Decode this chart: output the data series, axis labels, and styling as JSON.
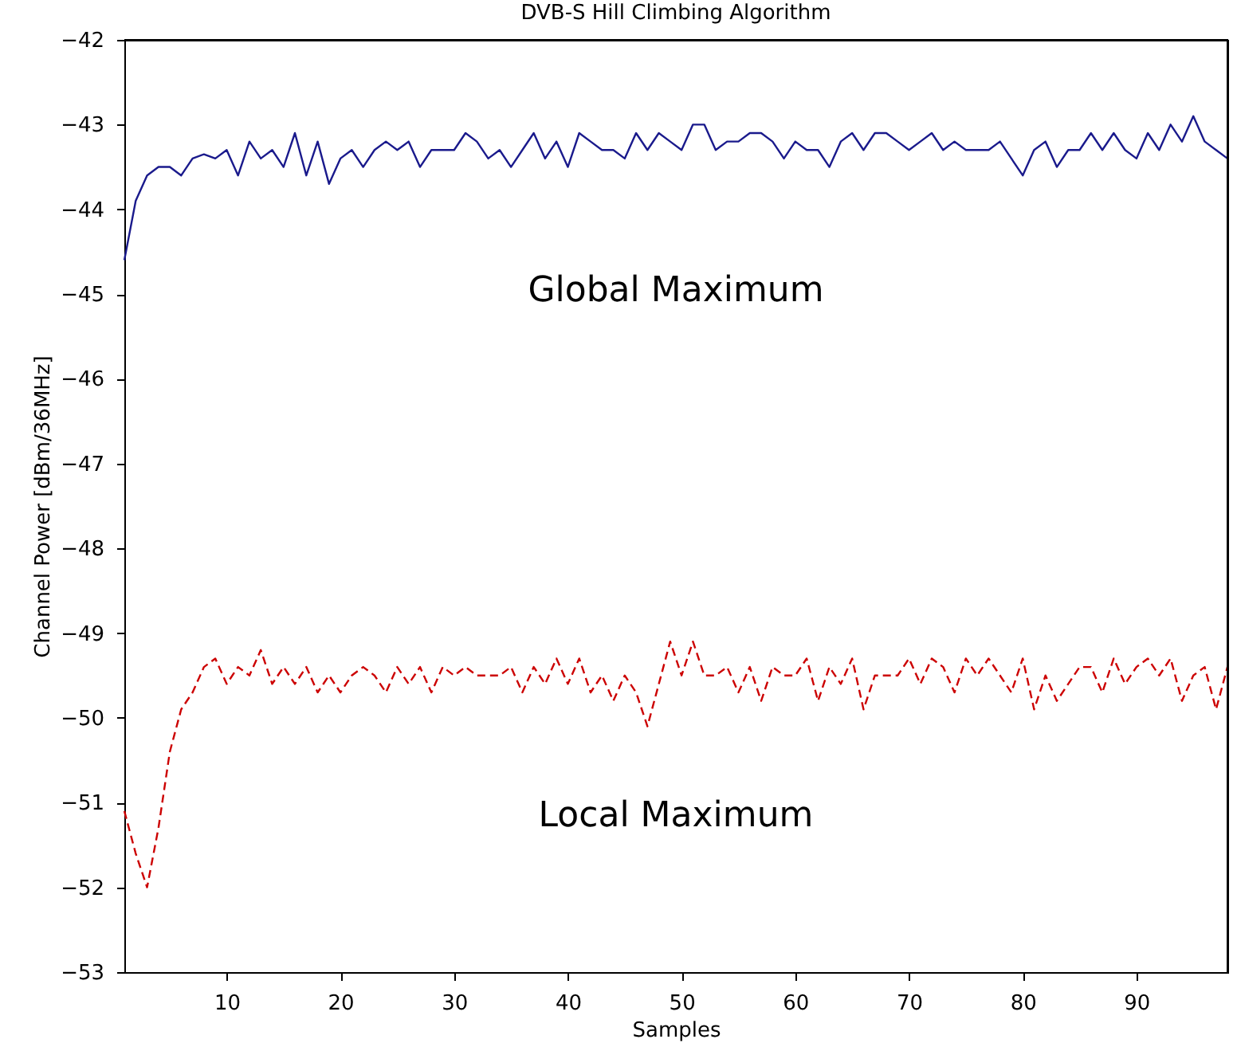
{
  "chart_data": {
    "type": "line",
    "title": "DVB-S Hill Climbing Algorithm",
    "xlabel": "Samples",
    "ylabel": "Channel Power [dBm/36MHz]",
    "xlim": [
      1,
      98
    ],
    "xticks": [
      10,
      20,
      30,
      40,
      50,
      60,
      70,
      80,
      90
    ],
    "ylim": [
      -53,
      -42
    ],
    "yticks": [
      -53,
      -52,
      -51,
      -50,
      -49,
      -48,
      -47,
      -46,
      -45,
      -44,
      -43,
      -42
    ],
    "grid": false,
    "x": [
      1,
      2,
      3,
      4,
      5,
      6,
      7,
      8,
      9,
      10,
      11,
      12,
      13,
      14,
      15,
      16,
      17,
      18,
      19,
      20,
      21,
      22,
      23,
      24,
      25,
      26,
      27,
      28,
      29,
      30,
      31,
      32,
      33,
      34,
      35,
      36,
      37,
      38,
      39,
      40,
      41,
      42,
      43,
      44,
      45,
      46,
      47,
      48,
      49,
      50,
      51,
      52,
      53,
      54,
      55,
      56,
      57,
      58,
      59,
      60,
      61,
      62,
      63,
      64,
      65,
      66,
      67,
      68,
      69,
      70,
      71,
      72,
      73,
      74,
      75,
      76,
      77,
      78,
      79,
      80,
      81,
      82,
      83,
      84,
      85,
      86,
      87,
      88,
      89,
      90,
      91,
      92,
      93,
      94,
      95,
      96,
      97,
      98
    ],
    "series": [
      {
        "name": "Global Maximum",
        "color": "#1a1a8c",
        "line_style": "solid",
        "values": [
          -44.6,
          -43.9,
          -43.6,
          -43.5,
          -43.5,
          -43.6,
          -43.4,
          -43.35,
          -43.4,
          -43.3,
          -43.6,
          -43.2,
          -43.4,
          -43.3,
          -43.5,
          -43.1,
          -43.6,
          -43.2,
          -43.7,
          -43.4,
          -43.3,
          -43.5,
          -43.3,
          -43.2,
          -43.3,
          -43.2,
          -43.5,
          -43.3,
          -43.3,
          -43.3,
          -43.1,
          -43.2,
          -43.4,
          -43.3,
          -43.5,
          -43.3,
          -43.1,
          -43.4,
          -43.2,
          -43.5,
          -43.1,
          -43.2,
          -43.3,
          -43.3,
          -43.4,
          -43.1,
          -43.3,
          -43.1,
          -43.2,
          -43.3,
          -43.0,
          -43.0,
          -43.3,
          -43.2,
          -43.2,
          -43.1,
          -43.1,
          -43.2,
          -43.4,
          -43.2,
          -43.3,
          -43.3,
          -43.5,
          -43.2,
          -43.1,
          -43.3,
          -43.1,
          -43.1,
          -43.2,
          -43.3,
          -43.2,
          -43.1,
          -43.3,
          -43.2,
          -43.3,
          -43.3,
          -43.3,
          -43.2,
          -43.4,
          -43.6,
          -43.3,
          -43.2,
          -43.5,
          -43.3,
          -43.3,
          -43.1,
          -43.3,
          -43.1,
          -43.3,
          -43.4,
          -43.1,
          -43.3,
          -43.0,
          -43.2,
          -42.9,
          -43.2,
          -43.3,
          -43.4
        ]
      },
      {
        "name": "Local Maximum",
        "color": "#cc0000",
        "line_style": "dashed",
        "values": [
          -51.1,
          -51.6,
          -52.0,
          -51.3,
          -50.4,
          -49.9,
          -49.7,
          -49.4,
          -49.3,
          -49.6,
          -49.4,
          -49.5,
          -49.2,
          -49.6,
          -49.4,
          -49.6,
          -49.4,
          -49.7,
          -49.5,
          -49.7,
          -49.5,
          -49.4,
          -49.5,
          -49.7,
          -49.4,
          -49.6,
          -49.4,
          -49.7,
          -49.4,
          -49.5,
          -49.4,
          -49.5,
          -49.5,
          -49.5,
          -49.4,
          -49.7,
          -49.4,
          -49.6,
          -49.3,
          -49.6,
          -49.3,
          -49.7,
          -49.5,
          -49.8,
          -49.5,
          -49.7,
          -50.1,
          -49.6,
          -49.1,
          -49.5,
          -49.1,
          -49.5,
          -49.5,
          -49.4,
          -49.7,
          -49.4,
          -49.8,
          -49.4,
          -49.5,
          -49.5,
          -49.3,
          -49.8,
          -49.4,
          -49.6,
          -49.3,
          -49.9,
          -49.5,
          -49.5,
          -49.5,
          -49.3,
          -49.6,
          -49.3,
          -49.4,
          -49.7,
          -49.3,
          -49.5,
          -49.3,
          -49.5,
          -49.7,
          -49.3,
          -49.9,
          -49.5,
          -49.8,
          -49.6,
          -49.4,
          -49.4,
          -49.7,
          -49.3,
          -49.6,
          -49.4,
          -49.3,
          -49.5,
          -49.3,
          -49.8,
          -49.5,
          -49.4,
          -49.9,
          -49.4
        ]
      }
    ]
  }
}
